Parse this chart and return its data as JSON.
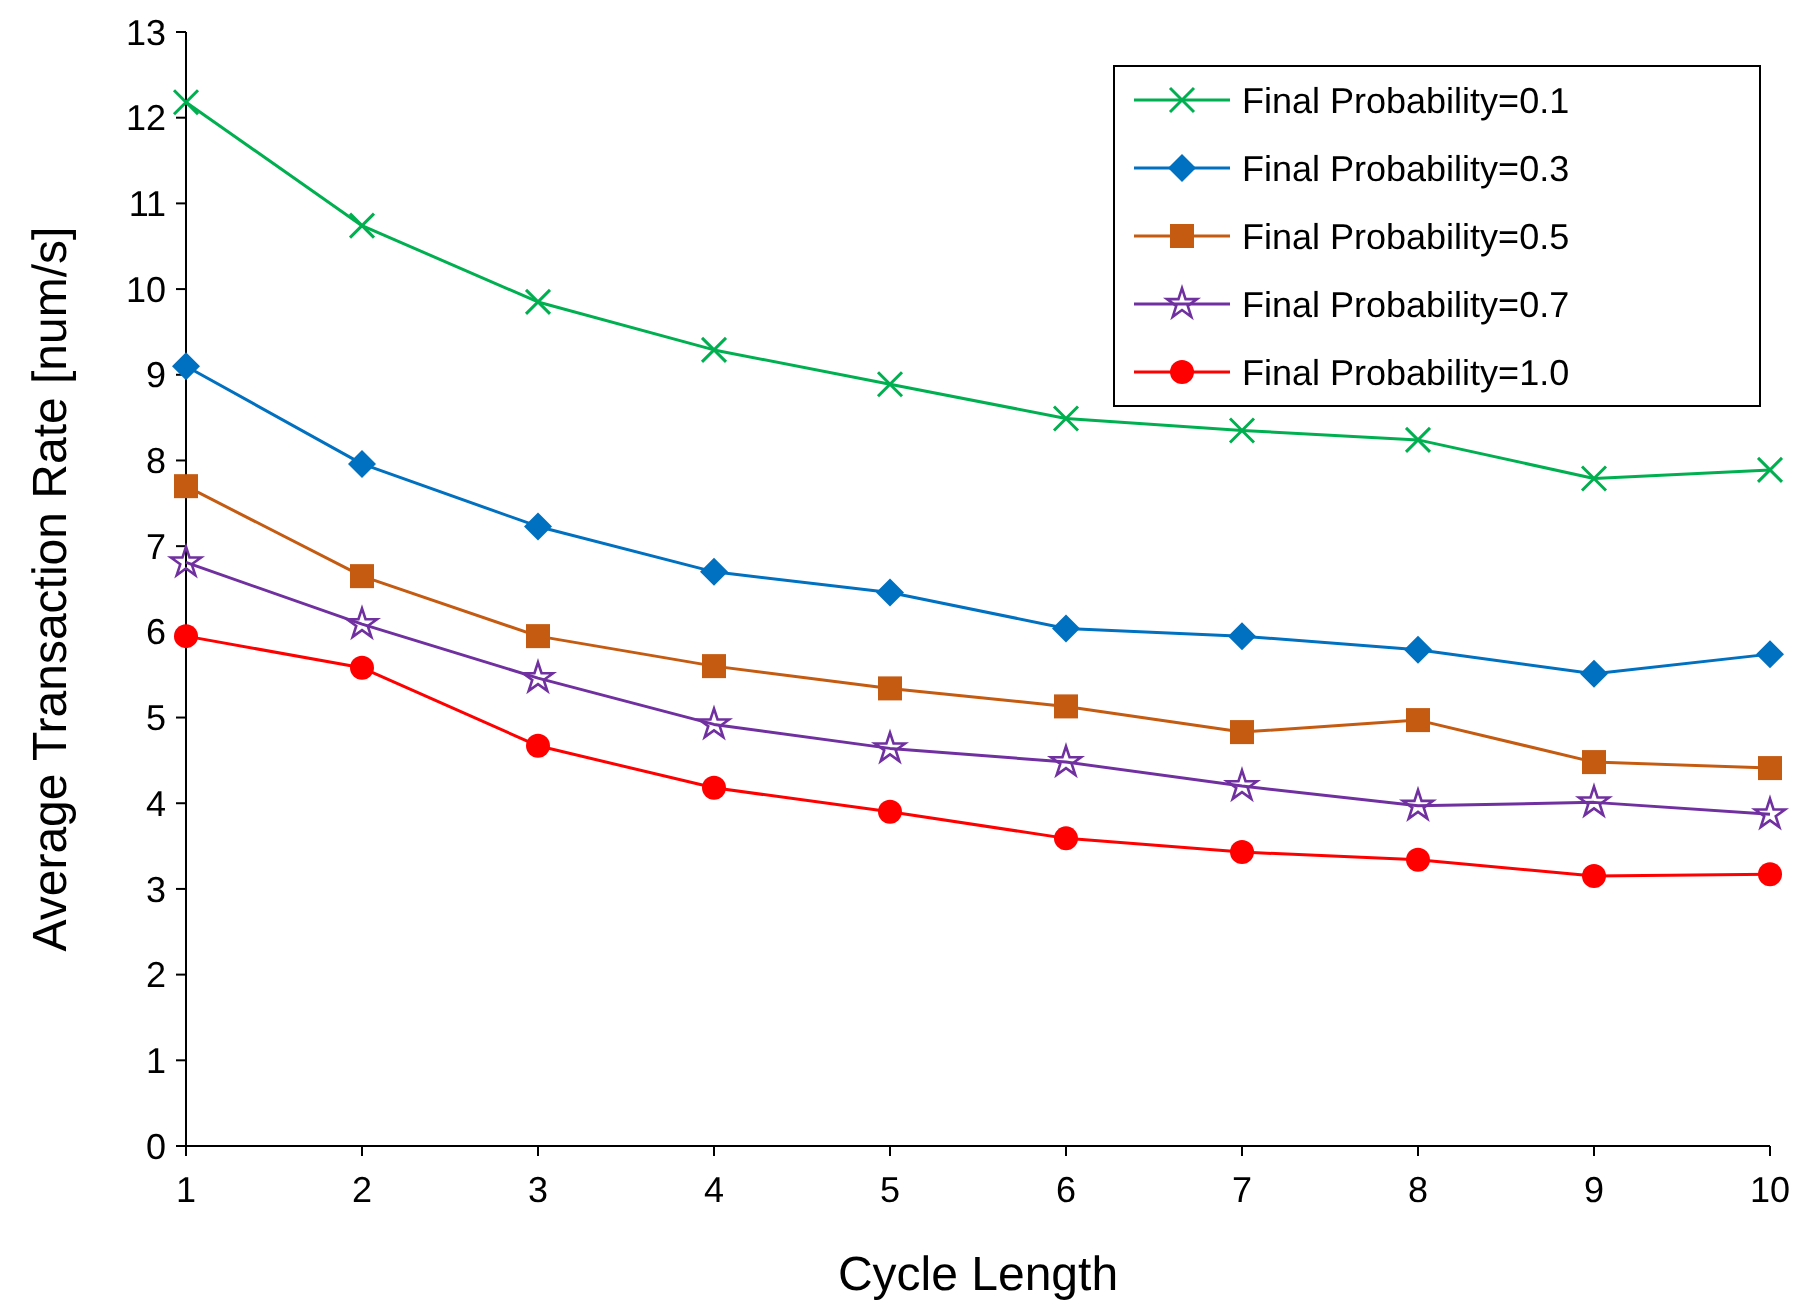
{
  "chart_data": {
    "type": "line",
    "xlabel": "Cycle Length",
    "ylabel": "Average Transaction Rate [num/s]",
    "x": [
      1,
      2,
      3,
      4,
      5,
      6,
      7,
      8,
      9,
      10
    ],
    "xlim": [
      1,
      10
    ],
    "xticks": [
      1,
      2,
      3,
      4,
      5,
      6,
      7,
      8,
      9,
      10
    ],
    "ylim": [
      0,
      13
    ],
    "yticks": [
      0,
      1,
      2,
      3,
      4,
      5,
      6,
      7,
      8,
      9,
      10,
      11,
      12,
      13
    ],
    "grid": false,
    "legend": "top right",
    "line_style": "solid",
    "series": [
      {
        "name": "Final Probability=0.1",
        "color": "#00b050",
        "marker": "cross",
        "values": [
          12.18,
          10.74,
          9.85,
          9.29,
          8.89,
          8.49,
          8.35,
          8.24,
          7.79,
          7.89
        ]
      },
      {
        "name": "Final Probability=0.3",
        "color": "#0070c0",
        "marker": "diamond",
        "values": [
          9.1,
          7.96,
          7.23,
          6.7,
          6.46,
          6.04,
          5.95,
          5.79,
          5.51,
          5.74
        ]
      },
      {
        "name": "Final Probability=0.5",
        "color": "#c55a11",
        "marker": "square",
        "values": [
          7.7,
          6.65,
          5.95,
          5.6,
          5.34,
          5.13,
          4.83,
          4.97,
          4.48,
          4.41
        ]
      },
      {
        "name": "Final Probability=0.7",
        "color": "#7030a0",
        "marker": "star",
        "values": [
          6.81,
          6.09,
          5.46,
          4.92,
          4.64,
          4.48,
          4.2,
          3.97,
          4.01,
          3.87
        ]
      },
      {
        "name": "Final Probability=1.0",
        "color": "#ff0000",
        "marker": "circle",
        "values": [
          5.95,
          5.58,
          4.67,
          4.18,
          3.9,
          3.59,
          3.43,
          3.34,
          3.15,
          3.17
        ]
      }
    ]
  }
}
